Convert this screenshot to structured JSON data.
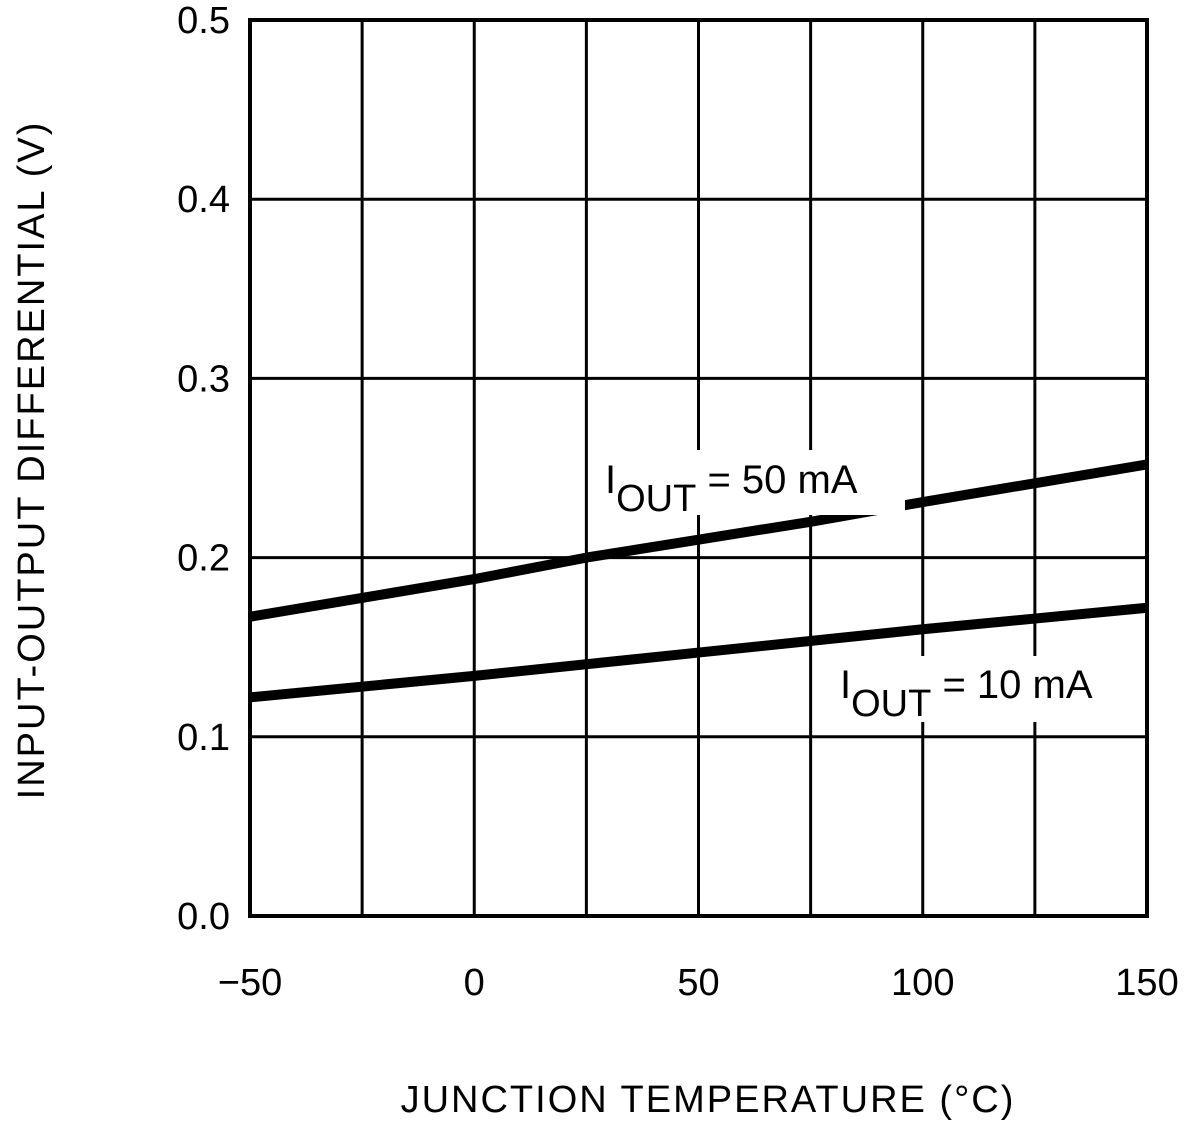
{
  "chart_data": {
    "type": "line",
    "title": "",
    "xlabel": "JUNCTION TEMPERATURE (°C)",
    "ylabel": "INPUT-OUTPUT DIFFERENTIAL (V)",
    "xlim": [
      -50,
      150
    ],
    "ylim": [
      0.0,
      0.5
    ],
    "x_ticks": [
      "−50",
      "0",
      "50",
      "100",
      "150"
    ],
    "x_tick_values": [
      -50,
      0,
      50,
      100,
      150
    ],
    "y_ticks": [
      "0.0",
      "0.1",
      "0.2",
      "0.3",
      "0.4",
      "0.5"
    ],
    "y_tick_values": [
      0,
      0.1,
      0.2,
      0.3,
      0.4,
      0.5
    ],
    "x_grid_step": 25,
    "grid": true,
    "series": [
      {
        "name": "IOUT = 50 mA",
        "label_main": "I",
        "label_sub": "OUT",
        "label_rest": " = 50 mA",
        "x": [
          -50,
          0,
          25,
          50,
          75,
          100,
          150
        ],
        "y": [
          0.167,
          0.188,
          0.2,
          0.21,
          0.22,
          0.231,
          0.252
        ]
      },
      {
        "name": "IOUT = 10 mA",
        "label_main": "I",
        "label_sub": "OUT",
        "label_rest": " = 10 mA",
        "x": [
          -50,
          0,
          50,
          100,
          150
        ],
        "y": [
          0.122,
          0.134,
          0.147,
          0.16,
          0.172
        ]
      }
    ],
    "colors": {
      "line": "#000000",
      "grid": "#000000",
      "background": "#ffffff"
    }
  }
}
